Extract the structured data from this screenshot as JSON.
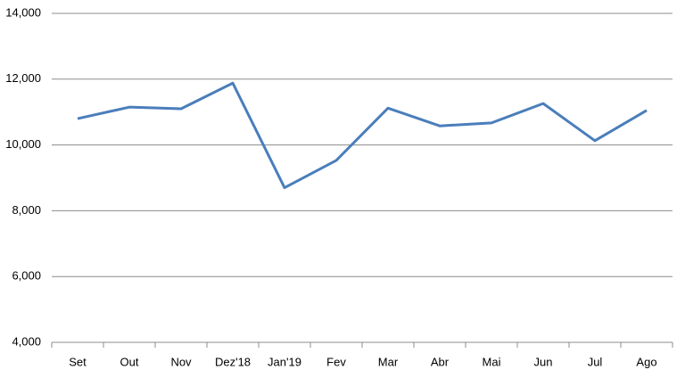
{
  "chart_data": {
    "type": "line",
    "categories": [
      "Set",
      "Out",
      "Nov",
      "Dez'18",
      "Jan'19",
      "Fev",
      "Mar",
      "Abr",
      "Mai",
      "Jun",
      "Jul",
      "Ago"
    ],
    "series": [
      {
        "color": "#4a7ebb",
        "values": [
          10800,
          11150,
          11100,
          11880,
          8700,
          9530,
          11120,
          10580,
          10670,
          11260,
          10130,
          11050
        ]
      }
    ],
    "ylim": [
      4000,
      14000
    ],
    "yticks": [
      {
        "value": 4000,
        "label": "4,000"
      },
      {
        "value": 6000,
        "label": "6,000"
      },
      {
        "value": 8000,
        "label": "8,000"
      },
      {
        "value": 10000,
        "label": "10,000"
      },
      {
        "value": 12000,
        "label": "12,000"
      },
      {
        "value": 14000,
        "label": "14,000"
      }
    ],
    "grid": true
  }
}
